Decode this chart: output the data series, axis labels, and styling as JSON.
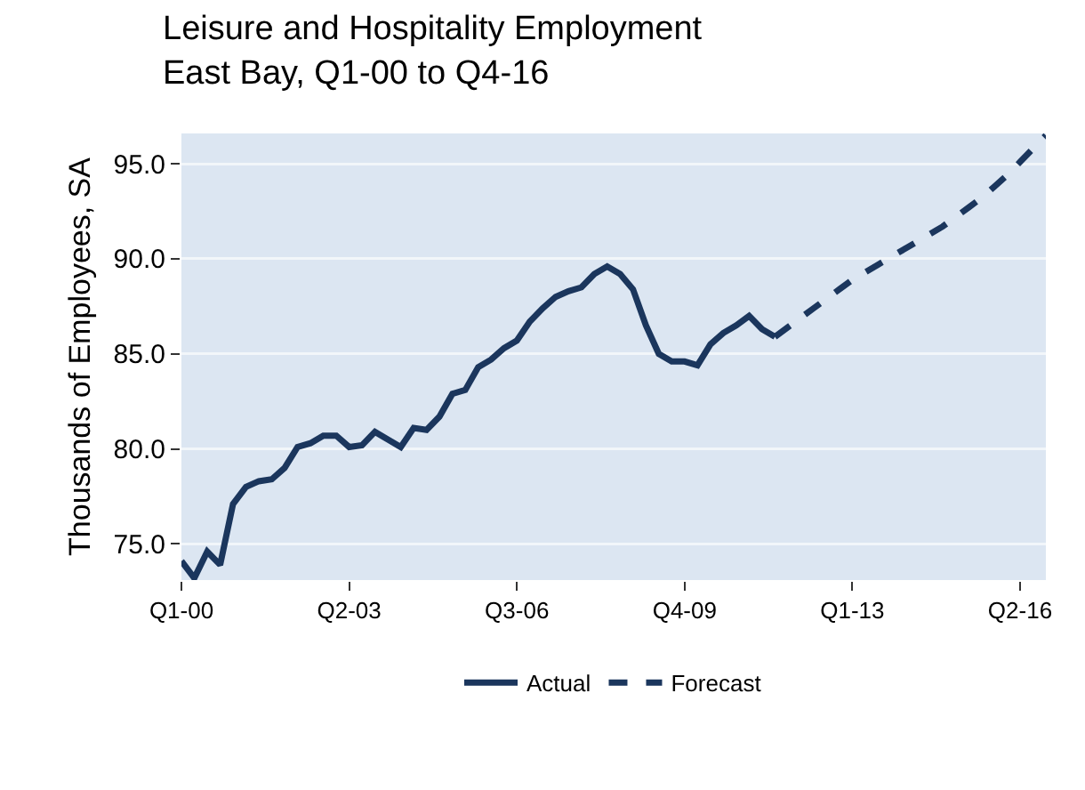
{
  "chart_data": {
    "type": "line",
    "title": "Leisure and Hospitality Employment\nEast Bay, Q1-00 to Q4-16",
    "ylabel": "Thousands of Employees, SA",
    "categories": [
      "Q1-00",
      null,
      null,
      null,
      null,
      null,
      null,
      null,
      null,
      null,
      null,
      null,
      null,
      "Q2-03",
      null,
      null,
      null,
      null,
      null,
      null,
      null,
      null,
      null,
      null,
      null,
      null,
      "Q3-06",
      null,
      null,
      null,
      null,
      null,
      null,
      null,
      null,
      null,
      null,
      null,
      null,
      "Q4-09",
      null,
      null,
      null,
      null,
      null,
      null,
      null,
      null,
      null,
      null,
      null,
      null,
      "Q1-13",
      null,
      null,
      null,
      null,
      null,
      null,
      null,
      null,
      null,
      null,
      null,
      null,
      "Q2-16",
      null,
      null
    ],
    "series": [
      {
        "name": "Actual",
        "color": "#1b365d",
        "line_style": "solid",
        "values": [
          74.1,
          73.2,
          74.6,
          73.9,
          77.1,
          78.0,
          78.3,
          78.4,
          79.0,
          80.1,
          80.3,
          80.7,
          80.7,
          80.1,
          80.2,
          80.9,
          80.5,
          80.1,
          81.1,
          81.0,
          81.7,
          82.9,
          83.1,
          84.3,
          84.7,
          85.3,
          85.7,
          86.7,
          87.4,
          88.0,
          88.3,
          88.5,
          89.2,
          89.6,
          89.2,
          88.4,
          86.5,
          85.0,
          84.6,
          84.6,
          84.4,
          85.5,
          86.1,
          86.5,
          87.0,
          86.3,
          85.9,
          null,
          null,
          null,
          null,
          null,
          null,
          null,
          null,
          null,
          null,
          null,
          null,
          null,
          null,
          null,
          null,
          null,
          null,
          null,
          null,
          null
        ]
      },
      {
        "name": "Forecast",
        "color": "#1b365d",
        "line_style": "dashed",
        "values": [
          null,
          null,
          null,
          null,
          null,
          null,
          null,
          null,
          null,
          null,
          null,
          null,
          null,
          null,
          null,
          null,
          null,
          null,
          null,
          null,
          null,
          null,
          null,
          null,
          null,
          null,
          null,
          null,
          null,
          null,
          null,
          null,
          null,
          null,
          null,
          null,
          null,
          null,
          null,
          null,
          null,
          null,
          null,
          null,
          null,
          null,
          85.9,
          86.4,
          86.9,
          87.4,
          87.9,
          88.4,
          88.9,
          89.3,
          89.7,
          90.1,
          90.5,
          90.9,
          91.3,
          91.7,
          92.2,
          92.7,
          93.2,
          93.8,
          94.4,
          95.1,
          95.8,
          96.5
        ]
      }
    ],
    "ylim": [
      73.1,
      96.6
    ],
    "yticks": [
      {
        "value": 75,
        "label": "75.0"
      },
      {
        "value": 80,
        "label": "80.0"
      },
      {
        "value": 85,
        "label": "85.0"
      },
      {
        "value": 90,
        "label": "90.0"
      },
      {
        "value": 95,
        "label": "95.0"
      }
    ],
    "grid": "y",
    "legend": "bottom",
    "marker": "none"
  }
}
